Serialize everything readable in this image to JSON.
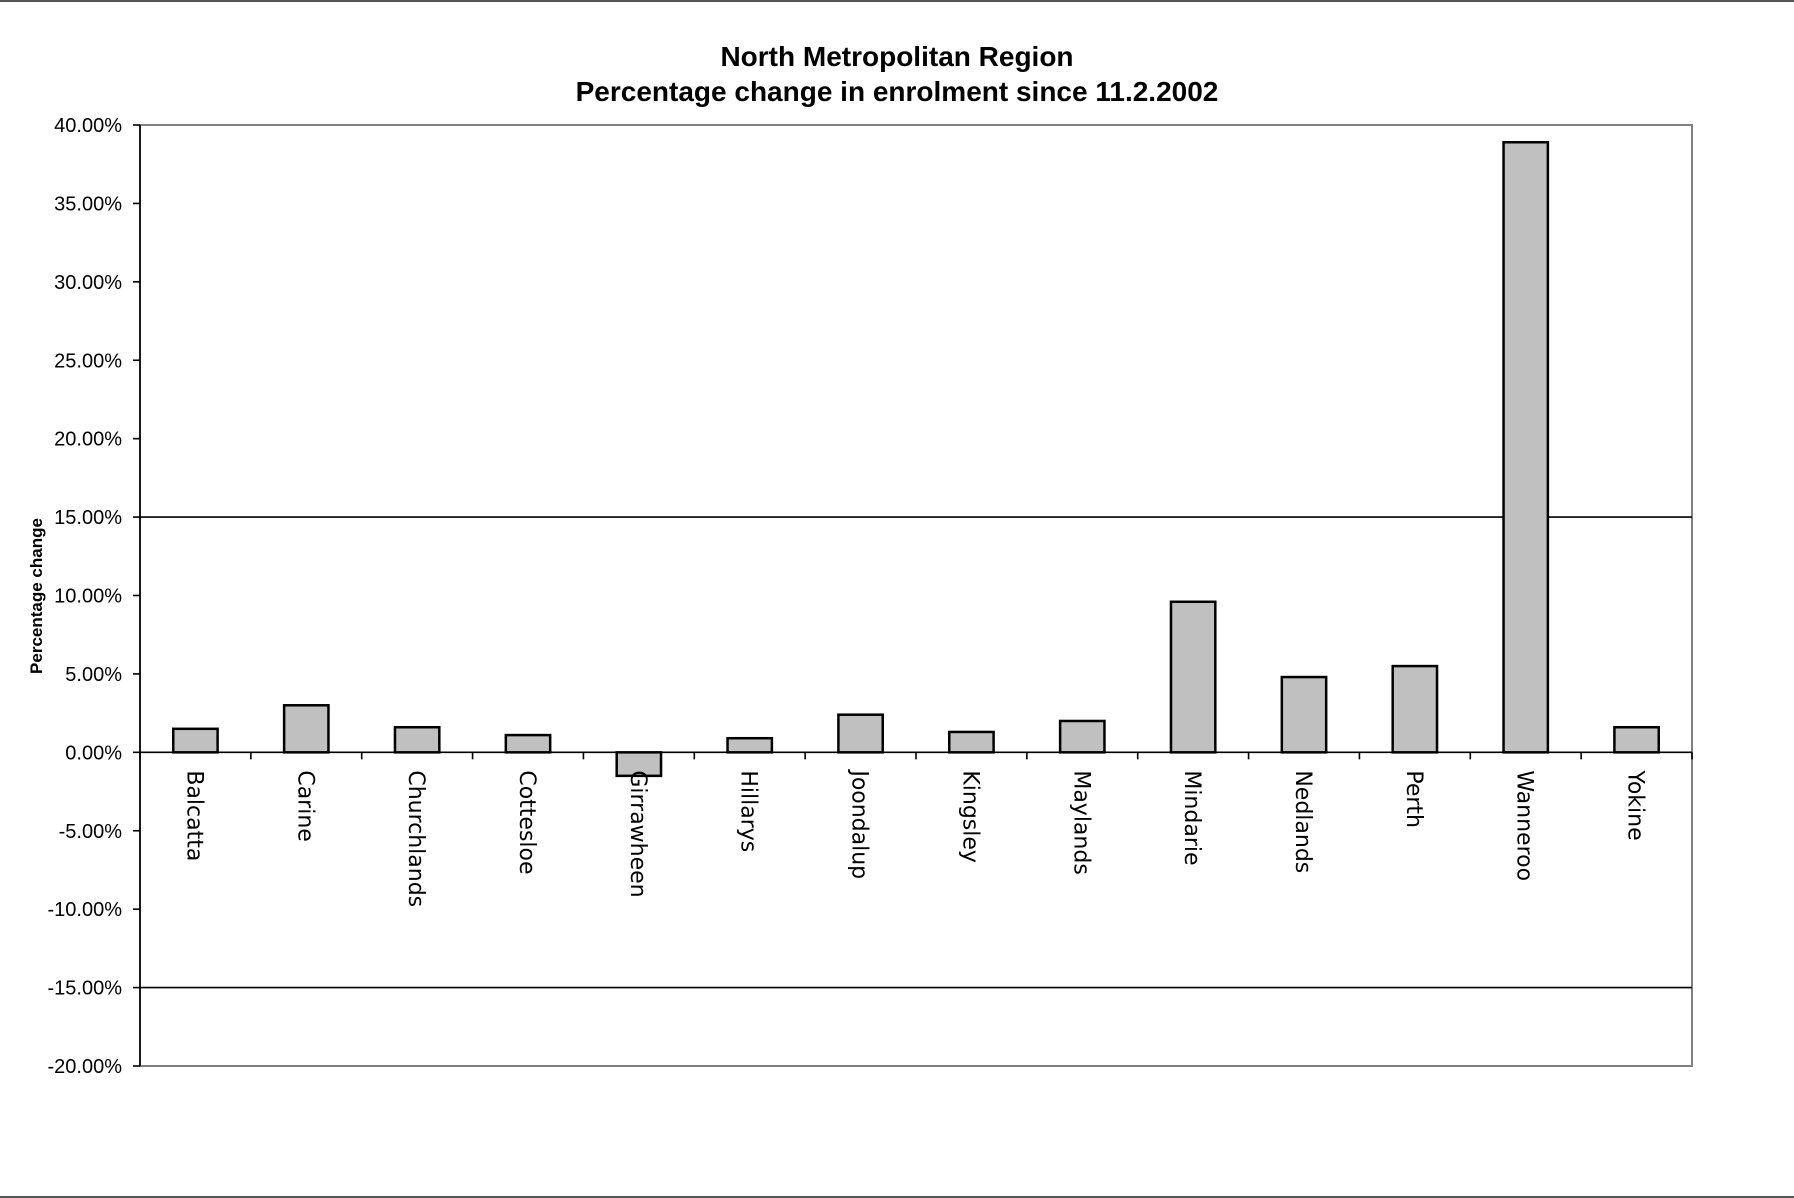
{
  "chart_data": {
    "type": "bar",
    "title": "North Metropolitan Region",
    "subtitle": "Percentage change in enrolment since 11.2.2002",
    "xlabel": "",
    "ylabel": "Percentage change",
    "ylim": [
      -0.2,
      0.4
    ],
    "yticks": [
      0.4,
      0.35,
      0.3,
      0.25,
      0.2,
      0.15,
      0.1,
      0.05,
      0.0,
      -0.05,
      -0.1,
      -0.15,
      -0.2
    ],
    "ytick_labels": [
      "40.00%",
      "35.00%",
      "30.00%",
      "25.00%",
      "20.00%",
      "15.00%",
      "10.00%",
      "5.00%",
      "0.00%",
      "-5.00%",
      "-10.00%",
      "-15.00%",
      "-20.00%"
    ],
    "reference_lines": [
      0.15,
      -0.15
    ],
    "grid": false,
    "legend": "none",
    "categories": [
      "Balcatta",
      "Carine",
      "Churchlands",
      "Cottesloe",
      "Girrawheen",
      "Hillarys",
      "Joondalup",
      "Kingsley",
      "Maylands",
      "Mindarie",
      "Nedlands",
      "Perth",
      "Wanneroo",
      "Yokine"
    ],
    "values": [
      0.015,
      0.03,
      0.016,
      0.011,
      -0.015,
      0.009,
      0.024,
      0.013,
      0.02,
      0.096,
      0.048,
      0.055,
      0.389,
      0.016
    ],
    "colors": {
      "bar_fill": "#c0c0c0",
      "bar_stroke": "#000000",
      "axis": "#000000",
      "plot_border": "#808080"
    }
  }
}
